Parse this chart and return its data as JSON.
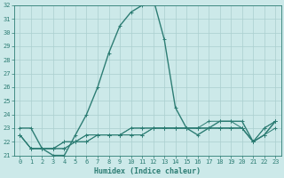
{
  "xlabel": "Humidex (Indice chaleur)",
  "xlim": [
    -0.5,
    23.5
  ],
  "ylim": [
    21,
    32
  ],
  "yticks": [
    21,
    22,
    23,
    24,
    25,
    26,
    27,
    28,
    29,
    30,
    31,
    32
  ],
  "xticks": [
    0,
    1,
    2,
    3,
    4,
    5,
    6,
    7,
    8,
    9,
    10,
    11,
    12,
    13,
    14,
    15,
    16,
    17,
    18,
    19,
    20,
    21,
    22,
    23
  ],
  "bg_color": "#cce9e9",
  "line_color": "#2d7d74",
  "grid_color": "#aacfcf",
  "lines": [
    [
      23.0,
      23.0,
      21.5,
      21.0,
      21.0,
      22.5,
      24.0,
      26.0,
      28.5,
      30.5,
      31.5,
      32.0,
      32.5,
      29.5,
      24.5,
      23.0,
      22.5,
      23.0,
      23.5,
      23.5,
      23.5,
      22.0,
      22.5,
      23.5
    ],
    [
      22.5,
      21.5,
      21.5,
      21.5,
      21.5,
      22.0,
      22.0,
      22.5,
      22.5,
      22.5,
      22.5,
      22.5,
      23.0,
      23.0,
      23.0,
      23.0,
      23.0,
      23.0,
      23.0,
      23.0,
      23.0,
      22.0,
      22.5,
      23.5
    ],
    [
      22.5,
      21.5,
      21.5,
      21.5,
      21.5,
      22.0,
      22.0,
      22.5,
      22.5,
      22.5,
      22.5,
      22.5,
      23.0,
      23.0,
      23.0,
      23.0,
      23.0,
      23.0,
      23.0,
      23.0,
      23.0,
      22.0,
      22.5,
      23.0
    ],
    [
      22.5,
      21.5,
      21.5,
      21.5,
      22.0,
      22.0,
      22.5,
      22.5,
      22.5,
      22.5,
      23.0,
      23.0,
      23.0,
      23.0,
      23.0,
      23.0,
      23.0,
      23.0,
      23.0,
      23.0,
      23.0,
      22.0,
      23.0,
      23.5
    ],
    [
      22.5,
      21.5,
      21.5,
      21.5,
      22.0,
      22.0,
      22.5,
      22.5,
      22.5,
      22.5,
      23.0,
      23.0,
      23.0,
      23.0,
      23.0,
      23.0,
      23.0,
      23.5,
      23.5,
      23.5,
      23.0,
      22.0,
      23.0,
      23.5
    ]
  ],
  "figsize": [
    3.2,
    2.0
  ],
  "dpi": 100
}
